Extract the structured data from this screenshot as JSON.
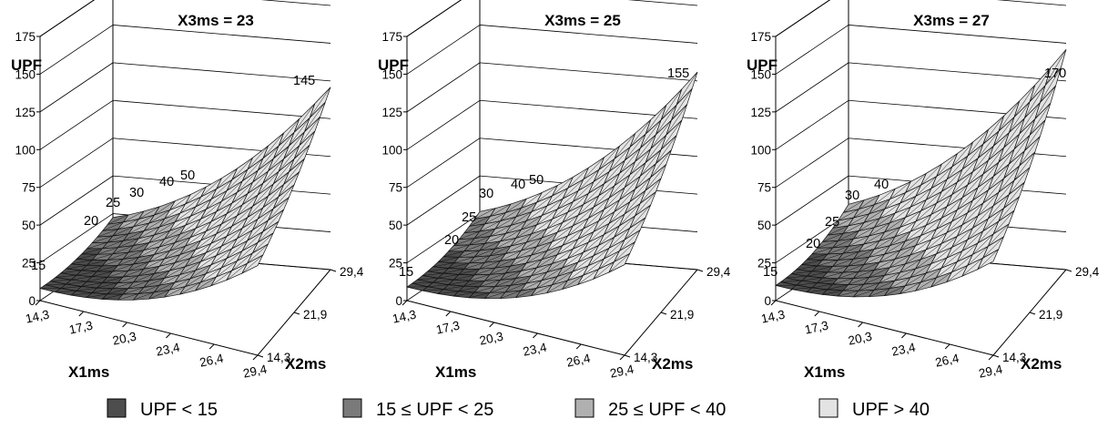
{
  "chart_data": [
    {
      "type": "surface",
      "title": "X3ms = 23",
      "zlabel": "UPF",
      "xlabel": "X1ms",
      "ylabel": "X2ms",
      "z_ticks": [
        "0",
        "25",
        "50",
        "75",
        "100",
        "125",
        "150",
        "175"
      ],
      "x_ticks": [
        "14,3",
        "17,3",
        "20,3",
        "23,4",
        "26,4",
        "29,4"
      ],
      "y_ticks": [
        "14,3",
        "21,9",
        "29,4"
      ],
      "x_range": [
        14.3,
        29.4
      ],
      "y_range": [
        14.3,
        29.4
      ],
      "z_range": [
        0,
        175
      ],
      "surface": {
        "z_min": 8,
        "z_max": 145,
        "x_weight": 1.0,
        "y_weight": 0.55
      },
      "contour_labels": [
        "15",
        "20",
        "25",
        "30",
        "40",
        "50",
        "145"
      ]
    },
    {
      "type": "surface",
      "title": "X3ms = 25",
      "zlabel": "UPF",
      "xlabel": "X1ms",
      "ylabel": "X2ms",
      "z_ticks": [
        "0",
        "25",
        "50",
        "75",
        "100",
        "125",
        "150",
        "175"
      ],
      "x_ticks": [
        "14,3",
        "17,3",
        "20,3",
        "23,4",
        "26,4",
        "29,4"
      ],
      "y_ticks": [
        "14,3",
        "21,9",
        "29,4"
      ],
      "x_range": [
        14.3,
        29.4
      ],
      "y_range": [
        14.3,
        29.4
      ],
      "z_range": [
        0,
        175
      ],
      "surface": {
        "z_min": 9,
        "z_max": 155,
        "x_weight": 1.0,
        "y_weight": 0.6
      },
      "contour_labels": [
        "15",
        "20",
        "25",
        "30",
        "40",
        "50",
        "155"
      ]
    },
    {
      "type": "surface",
      "title": "X3ms = 27",
      "zlabel": "UPF",
      "xlabel": "X1ms",
      "ylabel": "X2ms",
      "z_ticks": [
        "0",
        "25",
        "50",
        "75",
        "100",
        "125",
        "150",
        "175"
      ],
      "x_ticks": [
        "14,3",
        "17,3",
        "20,3",
        "23,4",
        "26,4",
        "29,4"
      ],
      "y_ticks": [
        "14,3",
        "21,9",
        "29,4"
      ],
      "x_range": [
        14.3,
        29.4
      ],
      "y_range": [
        14.3,
        29.4
      ],
      "z_range": [
        0,
        175
      ],
      "surface": {
        "z_min": 10,
        "z_max": 170,
        "x_weight": 1.0,
        "y_weight": 0.65
      },
      "contour_labels": [
        "15",
        "20",
        "25",
        "30",
        "40",
        "170"
      ]
    }
  ],
  "legend": [
    {
      "label": "UPF < 15",
      "color": "#4d4d4d"
    },
    {
      "label": "15 ≤ UPF < 25",
      "color": "#7a7a7a"
    },
    {
      "label": "25 ≤ UPF < 40",
      "color": "#b0b0b0"
    },
    {
      "label": "UPF > 40",
      "color": "#e3e3e3"
    }
  ]
}
